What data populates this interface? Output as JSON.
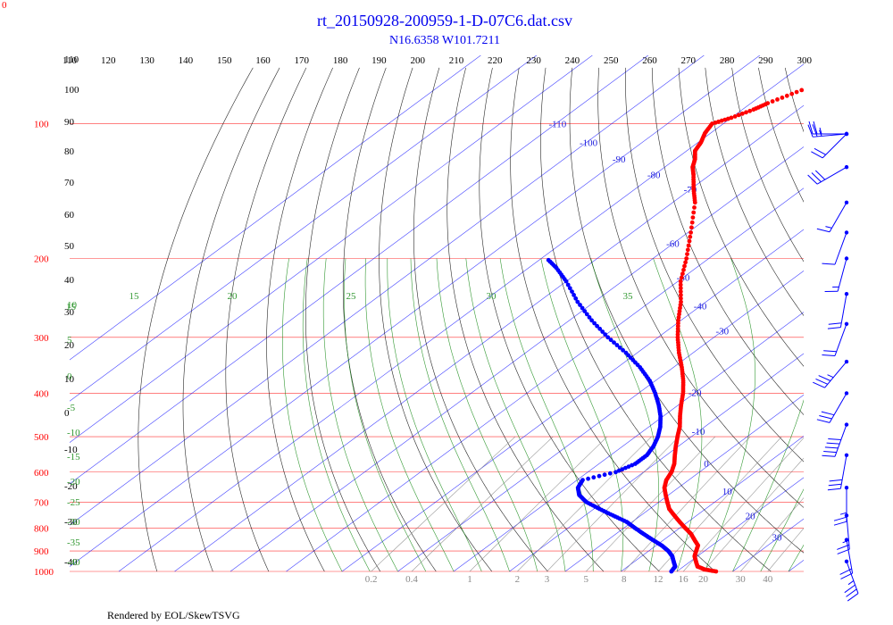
{
  "corner_label": "0",
  "title": "rt_20150928-200959-1-D-07C6.dat.csv",
  "subtitle": "N16.6358 W101.7211",
  "footer": "Rendered by EOL/SkewTSVG",
  "colors": {
    "temperature": "#ff0000",
    "dewpoint": "#0000ff",
    "isobar": "#ff0000",
    "isotherm": "#0000ff",
    "dry_adiabat": "#000000",
    "moist_adiabat": "#008000",
    "mixing_ratio": "#808080",
    "wind_barb": "#0000ff"
  },
  "chart_data": {
    "type": "skew-t log-p diagram",
    "pressure_labels": [
      "100",
      "200",
      "300",
      "400",
      "500",
      "600",
      "700",
      "800",
      "900",
      "1000"
    ],
    "potential_temperature_labels": [
      "110",
      "120",
      "130",
      "140",
      "150",
      "160",
      "170",
      "180",
      "190",
      "200",
      "210",
      "220",
      "230",
      "240",
      "250",
      "260",
      "270",
      "280",
      "290",
      "300"
    ],
    "left_theta_labels": [
      "110",
      "100",
      "90",
      "80",
      "70",
      "60",
      "50",
      "40",
      "30",
      "20",
      "10",
      "0",
      "-10",
      "-20",
      "-30",
      "-40"
    ],
    "isotherm_labels": [
      "-110",
      "-100",
      "-90",
      "-80",
      "-70",
      "-60",
      "-50",
      "-40",
      "-30",
      "-20",
      "-10",
      "0",
      "10",
      "20",
      "30"
    ],
    "moist_adiabat_labels": [
      "15",
      "20",
      "25",
      "30",
      "35"
    ],
    "left_moist_labels": [
      "15",
      "10",
      "5",
      "0",
      "-5",
      "-10",
      "-15",
      "-20",
      "-25",
      "-30",
      "-35",
      "-40"
    ],
    "mixing_ratio_labels": [
      "0.2",
      "0.4",
      "1",
      "2",
      "3",
      "5",
      "8",
      "12",
      "16",
      "20",
      "30",
      "40"
    ],
    "temperature_profile": [
      {
        "p": 1000,
        "t": 27.0
      },
      {
        "p": 990,
        "t": 24.5
      },
      {
        "p": 975,
        "t": 22.5
      },
      {
        "p": 950,
        "t": 21.0
      },
      {
        "p": 925,
        "t": 19.5
      },
      {
        "p": 900,
        "t": 18.5
      },
      {
        "p": 875,
        "t": 17.5
      },
      {
        "p": 850,
        "t": 15.5
      },
      {
        "p": 825,
        "t": 13.5
      },
      {
        "p": 800,
        "t": 11.0
      },
      {
        "p": 775,
        "t": 8.5
      },
      {
        "p": 750,
        "t": 6.0
      },
      {
        "p": 725,
        "t": 3.5
      },
      {
        "p": 700,
        "t": 1.5
      },
      {
        "p": 675,
        "t": -0.5
      },
      {
        "p": 650,
        "t": -2.5
      },
      {
        "p": 625,
        "t": -4.0
      },
      {
        "p": 600,
        "t": -5.0
      },
      {
        "p": 575,
        "t": -6.5
      },
      {
        "p": 550,
        "t": -8.5
      },
      {
        "p": 525,
        "t": -10.5
      },
      {
        "p": 500,
        "t": -12.5
      },
      {
        "p": 475,
        "t": -14.5
      },
      {
        "p": 450,
        "t": -17.0
      },
      {
        "p": 425,
        "t": -19.5
      },
      {
        "p": 400,
        "t": -22.0
      },
      {
        "p": 375,
        "t": -25.0
      },
      {
        "p": 350,
        "t": -28.5
      },
      {
        "p": 325,
        "t": -32.5
      },
      {
        "p": 300,
        "t": -36.5
      },
      {
        "p": 275,
        "t": -40.5
      },
      {
        "p": 250,
        "t": -44.5
      },
      {
        "p": 225,
        "t": -49.5
      },
      {
        "p": 200,
        "t": -54.0
      },
      {
        "p": 175,
        "t": -59.5
      },
      {
        "p": 150,
        "t": -66.0
      },
      {
        "p": 140,
        "t": -69.5
      },
      {
        "p": 130,
        "t": -73.0
      },
      {
        "p": 125,
        "t": -75.0
      },
      {
        "p": 120,
        "t": -76.5
      },
      {
        "p": 115,
        "t": -78.5
      },
      {
        "p": 110,
        "t": -79.5
      },
      {
        "p": 105,
        "t": -81.0
      },
      {
        "p": 100,
        "t": -82.0
      },
      {
        "p": 97,
        "t": -80.0
      },
      {
        "p": 93,
        "t": -78.0
      },
      {
        "p": 90,
        "t": -77.0
      },
      {
        "p": 85,
        "t": -74.5
      },
      {
        "p": 80,
        "t": -72.0
      },
      {
        "p": 76,
        "t": -71.5
      },
      {
        "p": 73,
        "t": -70.0
      }
    ],
    "dewpoint_profile": [
      {
        "p": 1000,
        "t": 19.0
      },
      {
        "p": 975,
        "t": 18.5
      },
      {
        "p": 950,
        "t": 17.0
      },
      {
        "p": 925,
        "t": 15.5
      },
      {
        "p": 900,
        "t": 13.5
      },
      {
        "p": 875,
        "t": 11.0
      },
      {
        "p": 850,
        "t": 8.0
      },
      {
        "p": 825,
        "t": 5.0
      },
      {
        "p": 800,
        "t": 2.0
      },
      {
        "p": 775,
        "t": -1.0
      },
      {
        "p": 750,
        "t": -5.0
      },
      {
        "p": 725,
        "t": -9.0
      },
      {
        "p": 700,
        "t": -13.0
      },
      {
        "p": 675,
        "t": -16.0
      },
      {
        "p": 650,
        "t": -18.0
      },
      {
        "p": 625,
        "t": -19.0
      },
      {
        "p": 600,
        "t": -15.0
      },
      {
        "p": 575,
        "t": -13.5
      },
      {
        "p": 550,
        "t": -13.5
      },
      {
        "p": 525,
        "t": -14.5
      },
      {
        "p": 500,
        "t": -16.0
      },
      {
        "p": 475,
        "t": -18.0
      },
      {
        "p": 450,
        "t": -20.5
      },
      {
        "p": 425,
        "t": -23.5
      },
      {
        "p": 400,
        "t": -27.0
      },
      {
        "p": 375,
        "t": -31.0
      },
      {
        "p": 350,
        "t": -36.0
      },
      {
        "p": 325,
        "t": -42.0
      },
      {
        "p": 300,
        "t": -49.0
      },
      {
        "p": 275,
        "t": -56.0
      },
      {
        "p": 250,
        "t": -63.0
      },
      {
        "p": 225,
        "t": -70.0
      },
      {
        "p": 210,
        "t": -75.0
      },
      {
        "p": 200,
        "t": -79.0
      }
    ],
    "wind_barbs": [
      {
        "p": 80,
        "dir": 270,
        "kt": 25
      },
      {
        "p": 90,
        "dir": 265,
        "kt": 25
      },
      {
        "p": 105,
        "dir": 225,
        "kt": 20
      },
      {
        "p": 125,
        "dir": 240,
        "kt": 30
      },
      {
        "p": 150,
        "dir": 210,
        "kt": 15
      },
      {
        "p": 175,
        "dir": 200,
        "kt": 10
      },
      {
        "p": 200,
        "dir": 195,
        "kt": 15
      },
      {
        "p": 240,
        "dir": 190,
        "kt": 20
      },
      {
        "p": 280,
        "dir": 200,
        "kt": 20
      },
      {
        "p": 340,
        "dir": 220,
        "kt": 35
      },
      {
        "p": 400,
        "dir": 210,
        "kt": 30
      },
      {
        "p": 470,
        "dir": 200,
        "kt": 50
      },
      {
        "p": 550,
        "dir": 190,
        "kt": 30
      },
      {
        "p": 650,
        "dir": 180,
        "kt": 25
      },
      {
        "p": 750,
        "dir": 175,
        "kt": 25
      },
      {
        "p": 850,
        "dir": 170,
        "kt": 20
      },
      {
        "p": 950,
        "dir": 160,
        "kt": 35
      }
    ]
  }
}
